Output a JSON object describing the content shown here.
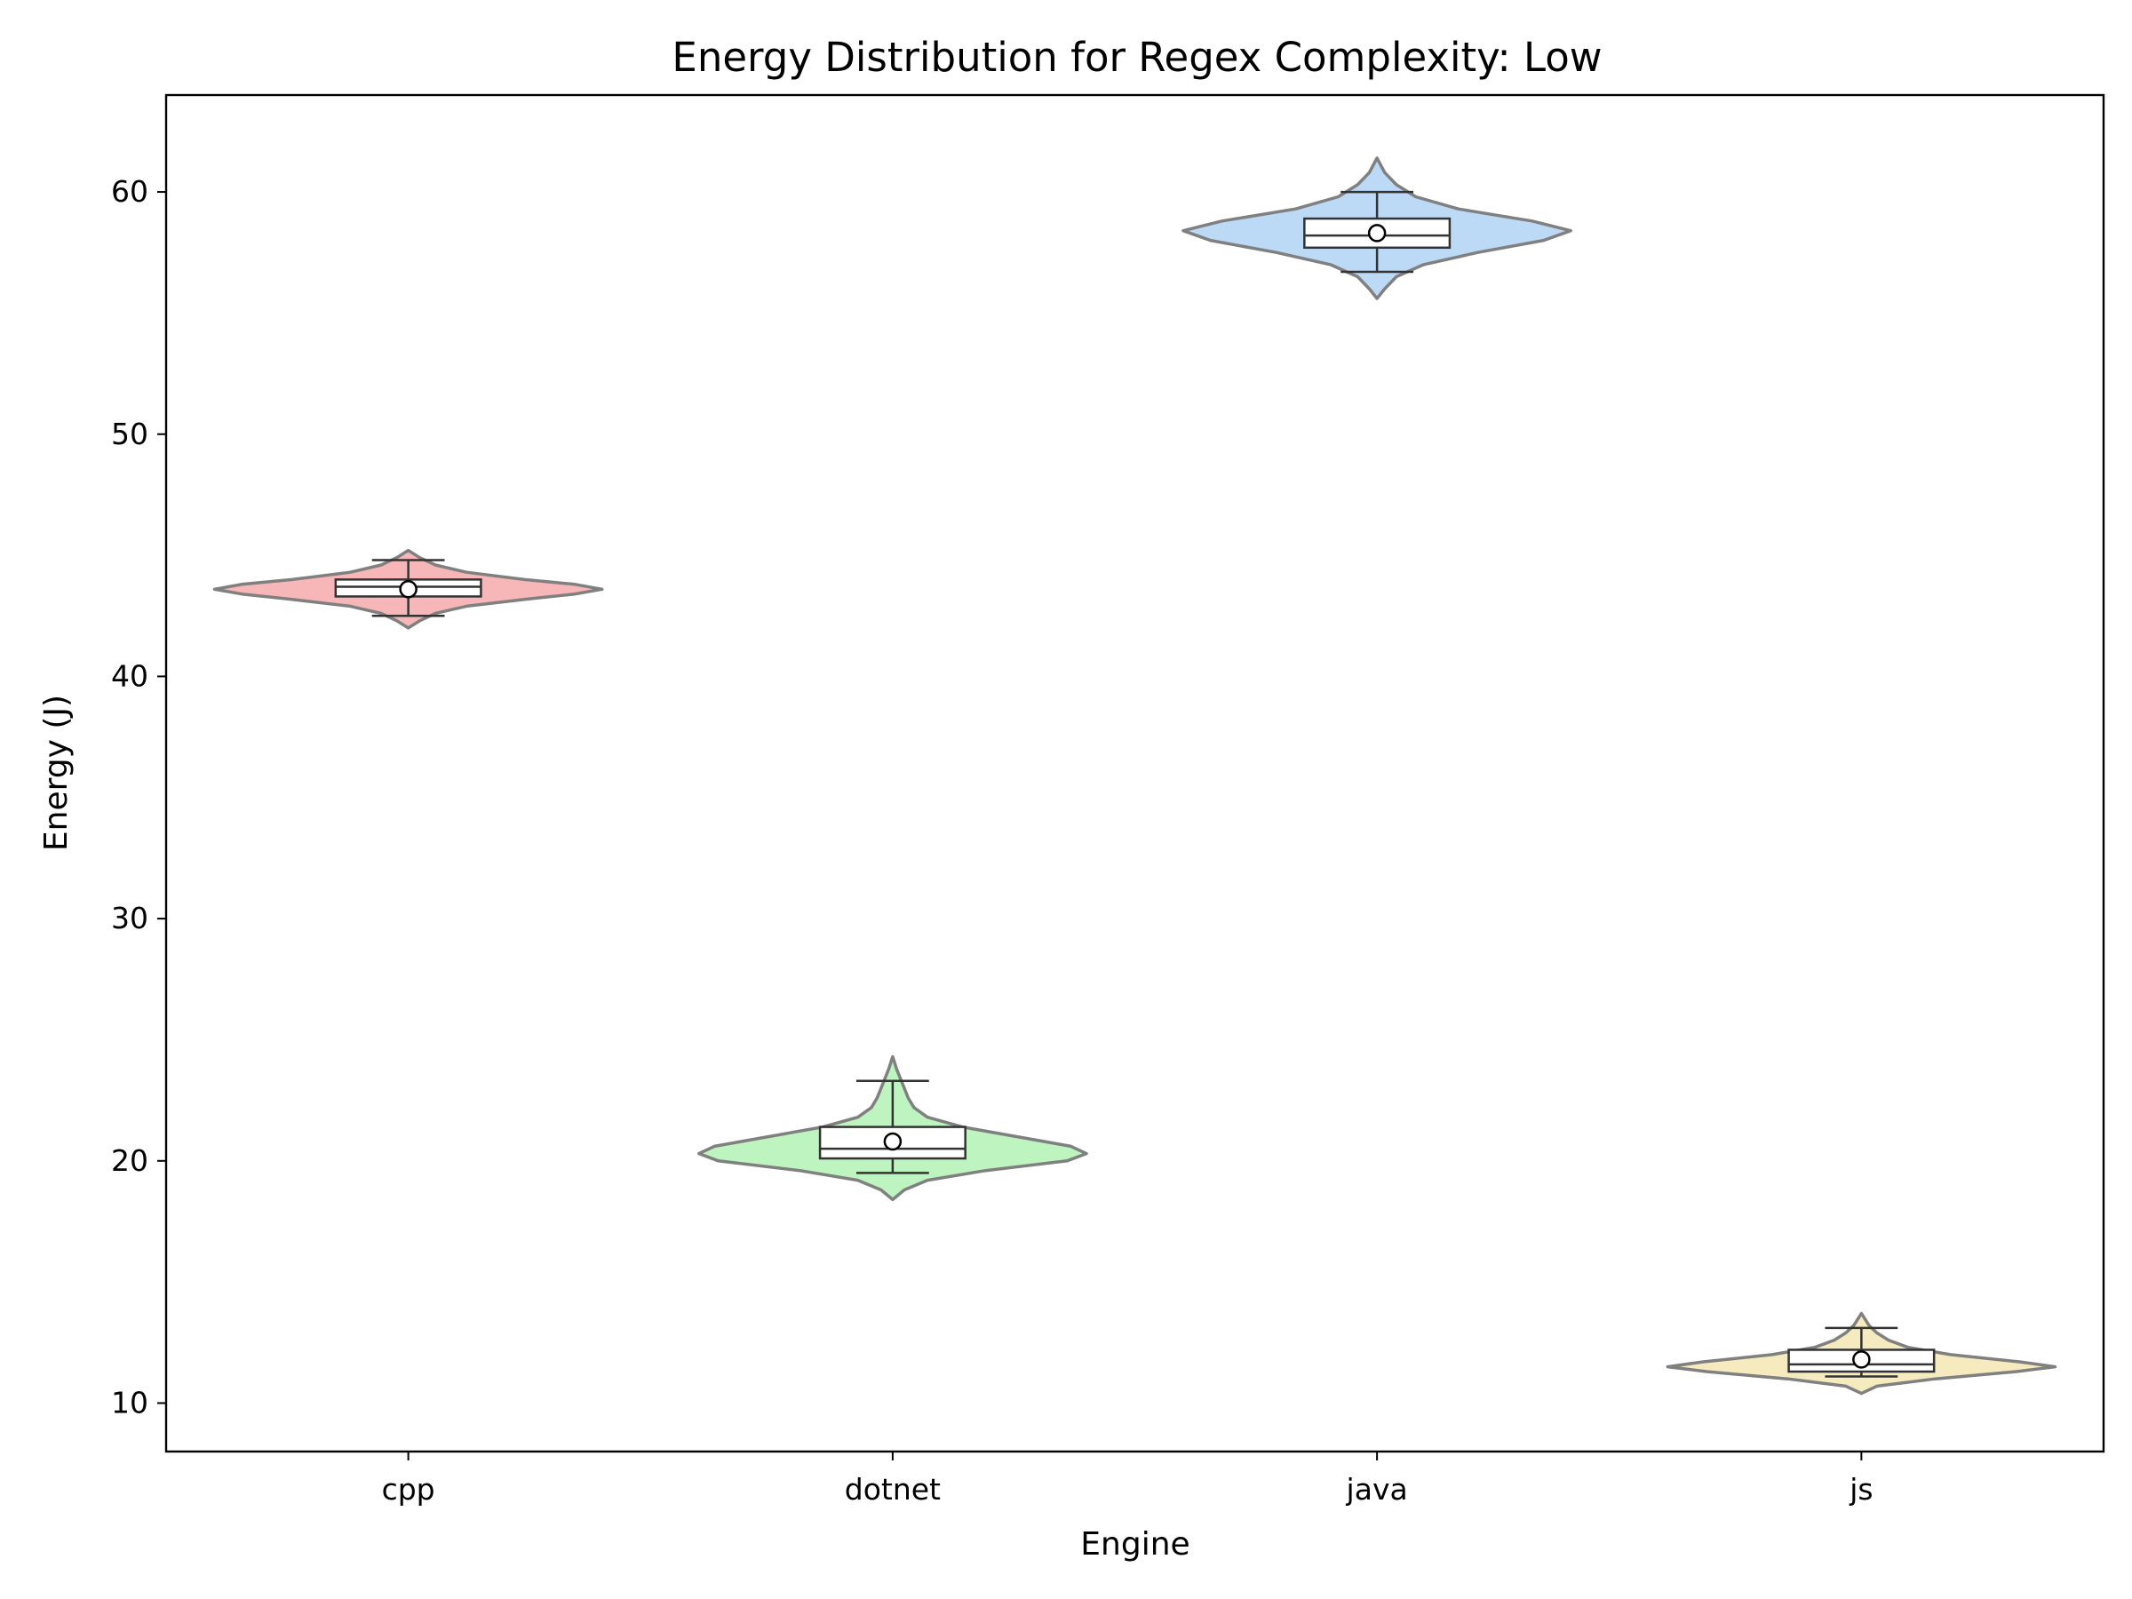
{
  "chart_data": {
    "type": "violin",
    "title": "Energy Distribution for Regex Complexity: Low",
    "xlabel": "Engine",
    "ylabel": "Energy (J)",
    "ylim": [
      8,
      64
    ],
    "yticks": [
      10,
      20,
      30,
      40,
      50,
      60
    ],
    "categories": [
      "cpp",
      "dotnet",
      "java",
      "js"
    ],
    "grid": false,
    "series": [
      {
        "category": "cpp",
        "color": "#f7b6b8",
        "kde_range": [
          42.0,
          45.2
        ],
        "kde_width_profile": [
          [
            42.0,
            0.0
          ],
          [
            42.3,
            0.06
          ],
          [
            42.6,
            0.14
          ],
          [
            42.9,
            0.3
          ],
          [
            43.2,
            0.62
          ],
          [
            43.4,
            0.86
          ],
          [
            43.6,
            1.0
          ],
          [
            43.8,
            0.86
          ],
          [
            44.0,
            0.6
          ],
          [
            44.3,
            0.3
          ],
          [
            44.6,
            0.14
          ],
          [
            44.9,
            0.06
          ],
          [
            45.2,
            0.0
          ]
        ],
        "min": 42.5,
        "q1": 43.3,
        "median": 43.7,
        "q3": 44.0,
        "max": 44.8,
        "mean": 43.6
      },
      {
        "category": "dotnet",
        "color": "#bdf4bf",
        "kde_range": [
          18.4,
          24.3
        ],
        "kde_width_profile": [
          [
            18.4,
            0.0
          ],
          [
            18.8,
            0.06
          ],
          [
            19.2,
            0.18
          ],
          [
            19.6,
            0.48
          ],
          [
            20.0,
            0.9
          ],
          [
            20.3,
            1.0
          ],
          [
            20.6,
            0.92
          ],
          [
            21.0,
            0.64
          ],
          [
            21.4,
            0.36
          ],
          [
            21.8,
            0.18
          ],
          [
            22.2,
            0.11
          ],
          [
            22.6,
            0.08
          ],
          [
            23.0,
            0.06
          ],
          [
            23.4,
            0.04
          ],
          [
            23.8,
            0.02
          ],
          [
            24.3,
            0.0
          ]
        ],
        "min": 19.5,
        "q1": 20.1,
        "median": 20.5,
        "q3": 21.4,
        "max": 23.3,
        "mean": 20.8
      },
      {
        "category": "java",
        "color": "#bcd9f6",
        "kde_range": [
          55.6,
          61.4
        ],
        "kde_width_profile": [
          [
            55.6,
            0.0
          ],
          [
            56.0,
            0.04
          ],
          [
            56.5,
            0.1
          ],
          [
            57.0,
            0.24
          ],
          [
            57.5,
            0.52
          ],
          [
            58.0,
            0.86
          ],
          [
            58.4,
            1.0
          ],
          [
            58.8,
            0.8
          ],
          [
            59.3,
            0.42
          ],
          [
            59.8,
            0.2
          ],
          [
            60.3,
            0.1
          ],
          [
            60.8,
            0.04
          ],
          [
            61.4,
            0.0
          ]
        ],
        "min": 56.7,
        "q1": 57.7,
        "median": 58.2,
        "q3": 58.9,
        "max": 60.0,
        "mean": 58.3
      },
      {
        "category": "js",
        "color": "#f5ebbe",
        "kde_range": [
          10.4,
          13.7
        ],
        "kde_width_profile": [
          [
            10.4,
            0.0
          ],
          [
            10.7,
            0.08
          ],
          [
            11.0,
            0.38
          ],
          [
            11.3,
            0.8
          ],
          [
            11.5,
            1.0
          ],
          [
            11.7,
            0.82
          ],
          [
            12.0,
            0.46
          ],
          [
            12.3,
            0.24
          ],
          [
            12.6,
            0.14
          ],
          [
            12.9,
            0.08
          ],
          [
            13.2,
            0.04
          ],
          [
            13.7,
            0.0
          ]
        ],
        "min": 11.1,
        "q1": 11.3,
        "median": 11.6,
        "q3": 12.2,
        "max": 13.1,
        "mean": 11.8
      }
    ]
  }
}
